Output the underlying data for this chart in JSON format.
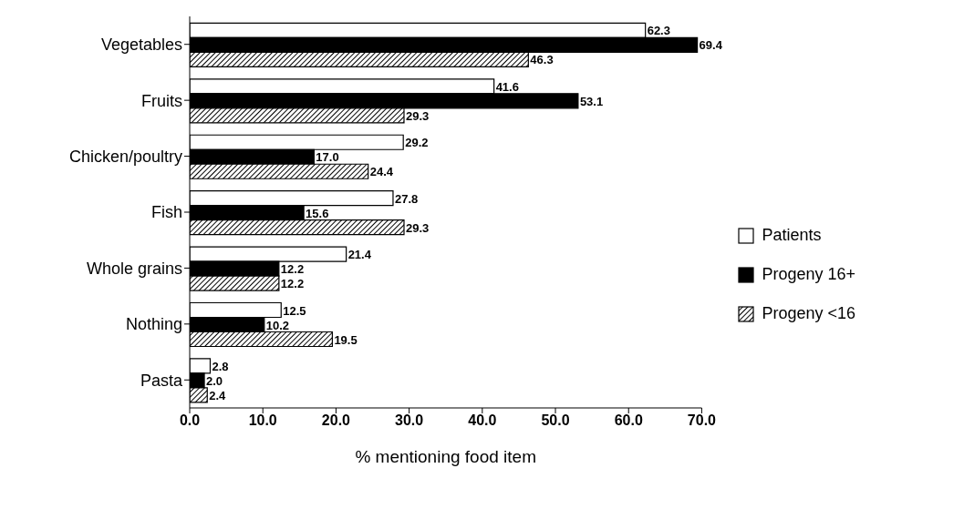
{
  "chart_data": {
    "type": "bar",
    "orientation": "horizontal",
    "xlabel": "% mentioning food  item",
    "categories": [
      "Vegetables",
      "Fruits",
      "Chicken/poultry",
      "Fish",
      "Whole grains",
      "Nothing",
      "Pasta"
    ],
    "series": [
      {
        "name": "Patients",
        "color": "#ffffff",
        "values": [
          62.3,
          41.6,
          29.2,
          27.8,
          21.4,
          12.5,
          2.8
        ],
        "value_labels": [
          "62.3",
          "41.6",
          "29.2",
          "27.8",
          "21.4",
          "12.5",
          "2.8"
        ]
      },
      {
        "name": "Progeny 16+",
        "color": "#000000",
        "values": [
          69.4,
          53.1,
          17.0,
          15.6,
          12.2,
          10.2,
          2.0
        ],
        "value_labels": [
          "69.4",
          "53.1",
          "17.0",
          "15.6",
          "12.2",
          "10.2",
          "2.0"
        ]
      },
      {
        "name": "Progeny <16",
        "color": "#000000",
        "values": [
          46.3,
          29.3,
          24.4,
          29.3,
          12.2,
          19.5,
          2.4
        ],
        "value_labels": [
          "46.3",
          "29.3",
          "24.4",
          "29.3",
          "12.2",
          "19.5",
          "2.4"
        ]
      }
    ],
    "xlim": [
      0,
      70
    ],
    "xticks": [
      {
        "value": 0,
        "label": "0.0"
      },
      {
        "value": 10,
        "label": "10.0"
      },
      {
        "value": 20,
        "label": "20.0"
      },
      {
        "value": 30,
        "label": "30.0"
      },
      {
        "value": 40,
        "label": "40.0"
      },
      {
        "value": 50,
        "label": "50.0"
      },
      {
        "value": 60,
        "label": "60.0"
      },
      {
        "value": 70,
        "label": "70.0"
      }
    ],
    "legend": "right",
    "grid": false
  }
}
